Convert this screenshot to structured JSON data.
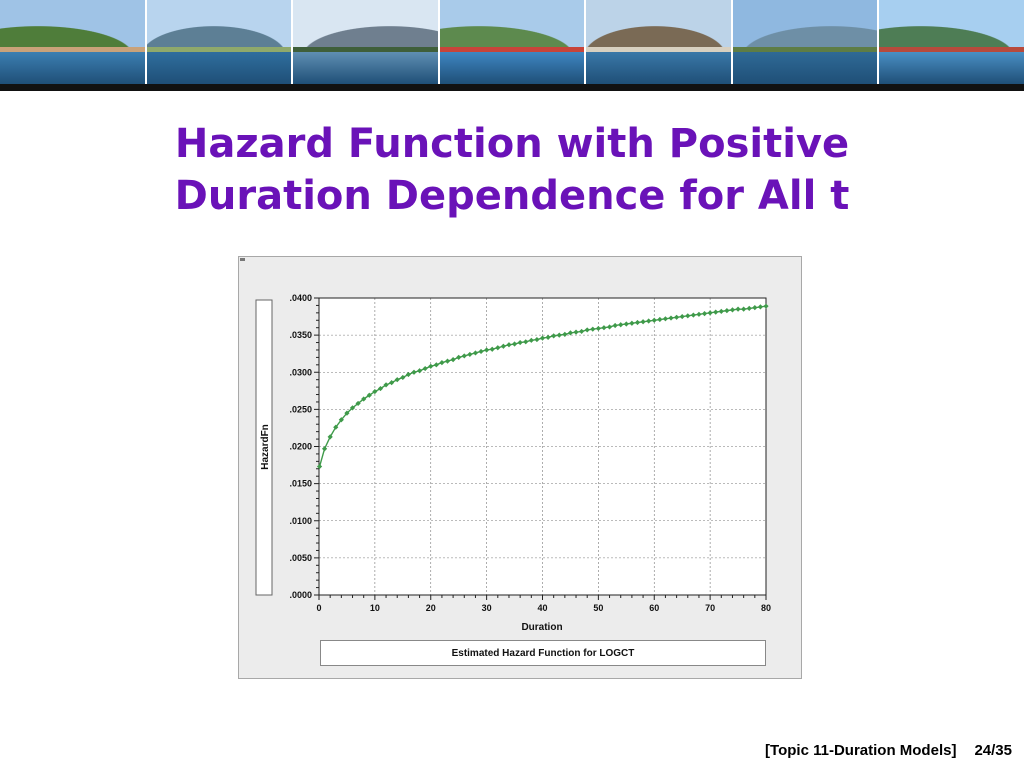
{
  "slide": {
    "title_line1": "Hazard Function with Positive",
    "title_line2": "Duration Dependence for All t",
    "footer_topic": "[Topic 11-Duration Models]",
    "footer_page": "24/35"
  },
  "banner": {
    "photos": [
      {
        "sky": "#9fc3e6",
        "mountain": "#4f7d3a",
        "water": "#3c7fb2",
        "shore": "#c9a27a"
      },
      {
        "sky": "#b8d4ee",
        "mountain": "#5d7f95",
        "water": "#2f6e9e",
        "shore": "#8fa96b"
      },
      {
        "sky": "#d9e6f2",
        "mountain": "#6f7f8f",
        "water": "#5f8fb3",
        "shore": "#3f5f3a"
      },
      {
        "sky": "#a9cbea",
        "mountain": "#5d8a4e",
        "water": "#3f86c2",
        "shore": "#c7443a"
      },
      {
        "sky": "#bcd3e8",
        "mountain": "#7a6a55",
        "water": "#3a78a8",
        "shore": "#d8d0c0"
      },
      {
        "sky": "#8fb8e0",
        "mountain": "#6e8fa6",
        "water": "#2f6a96",
        "shore": "#5e7d45"
      },
      {
        "sky": "#a7cff0",
        "mountain": "#4e7d55",
        "water": "#4a8fc4",
        "shore": "#b84a3c"
      }
    ]
  },
  "chart_data": {
    "type": "scatter",
    "title": "",
    "xlabel": "Duration",
    "ylabel": "HazardFn",
    "caption": "Estimated Hazard Function for LOGCT",
    "xlim": [
      0,
      80
    ],
    "ylim": [
      0.0,
      0.04
    ],
    "x_ticks": [
      0,
      10,
      20,
      30,
      40,
      50,
      60,
      70,
      80
    ],
    "x_tick_labels": [
      "0",
      "10",
      "20",
      "30",
      "40",
      "50",
      "60",
      "70",
      "80"
    ],
    "y_ticks": [
      0.0,
      0.005,
      0.01,
      0.015,
      0.02,
      0.025,
      0.03,
      0.035,
      0.04
    ],
    "y_tick_labels": [
      ".0000",
      ".0050",
      ".0100",
      ".0150",
      ".0200",
      ".0250",
      ".0300",
      ".0350",
      ".0400"
    ],
    "grid": true,
    "series_color": "#3f9a4a",
    "series": [
      {
        "x": [
          0.1,
          1.0,
          2.0,
          3.0,
          4.0,
          5.0,
          6.0,
          7.0,
          8.0,
          9.0,
          10.0,
          11.0,
          12.0,
          13.0,
          14.0,
          15.0,
          16.0,
          17.0,
          18.0,
          19.0,
          20.0,
          21.0,
          22.0,
          23.0,
          24.0,
          25.0,
          26.0,
          27.0,
          28.0,
          29.0,
          30.0,
          31.0,
          32.0,
          33.0,
          34.0,
          35.0,
          36.0,
          37.0,
          38.0,
          39.0,
          40.0,
          41.0,
          42.0,
          43.0,
          44.0,
          45.0,
          46.0,
          47.0,
          48.0,
          49.0,
          50.0,
          51.0,
          52.0,
          53.0,
          54.0,
          55.0,
          56.0,
          57.0,
          58.0,
          59.0,
          60.0,
          61.0,
          62.0,
          63.0,
          64.0,
          65.0,
          66.0,
          67.0,
          68.0,
          69.0,
          70.0,
          71.0,
          72.0,
          73.0,
          74.0,
          75.0,
          76.0,
          77.0,
          78.0,
          79.0,
          80.0
        ],
        "y": [
          0.0173,
          0.0197,
          0.0213,
          0.0226,
          0.0236,
          0.0245,
          0.0252,
          0.0258,
          0.0264,
          0.0269,
          0.0274,
          0.0278,
          0.0283,
          0.0286,
          0.029,
          0.0293,
          0.0297,
          0.03,
          0.0302,
          0.0305,
          0.0308,
          0.031,
          0.0313,
          0.0315,
          0.0317,
          0.032,
          0.0322,
          0.0324,
          0.0326,
          0.0328,
          0.033,
          0.0331,
          0.0333,
          0.0335,
          0.0337,
          0.0338,
          0.034,
          0.0341,
          0.0343,
          0.0344,
          0.0346,
          0.0347,
          0.0349,
          0.035,
          0.0351,
          0.0353,
          0.0354,
          0.0355,
          0.0357,
          0.0358,
          0.0359,
          0.036,
          0.0361,
          0.0363,
          0.0364,
          0.0365,
          0.0366,
          0.0367,
          0.0368,
          0.0369,
          0.037,
          0.0371,
          0.0372,
          0.0373,
          0.0374,
          0.0375,
          0.0376,
          0.0377,
          0.0378,
          0.0379,
          0.038,
          0.0381,
          0.0382,
          0.0383,
          0.0384,
          0.0385,
          0.0385,
          0.0386,
          0.0387,
          0.0388,
          0.0389
        ]
      }
    ]
  }
}
